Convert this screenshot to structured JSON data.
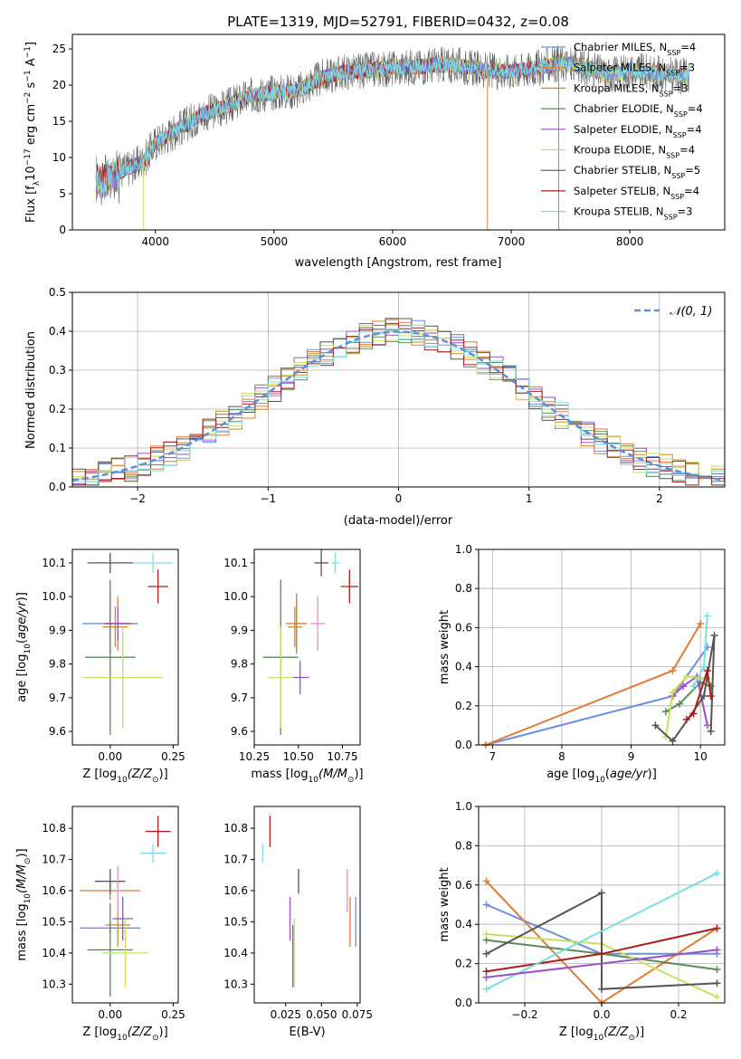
{
  "colors": {
    "chabrier_miles": "#6f8ee0",
    "salpeter_miles": "#e07b39",
    "kroupa_miles": "#c98a2a",
    "chabrier_elodie": "#5a8a5a",
    "salpeter_elodie": "#9a4fc7",
    "kroupa_elodie": "#cddc64",
    "chabrier_stelib": "#555555",
    "salpeter_stelib": "#a81e1e",
    "kroupa_stelib": "#7fdde0",
    "normal_curve": "#5b8fd6"
  },
  "chart_data": [
    {
      "type": "line",
      "title": "PLATE=1319, MJD=52791, FIBERID=0432, z=0.08",
      "xlabel": "wavelength [Angstrom, rest frame]",
      "ylabel_parts": [
        "Flux [f",
        "λ",
        "10",
        "−17",
        " erg cm",
        "−2",
        " s",
        "−1",
        " A",
        "−1",
        "]"
      ],
      "xlim": [
        3300,
        8800
      ],
      "ylim": [
        0,
        27
      ],
      "xticks": [
        "4000",
        "5000",
        "6000",
        "7000",
        "8000"
      ],
      "yticks": [
        "0",
        "5",
        "10",
        "15",
        "20",
        "25"
      ],
      "legend_position": "right",
      "series": [
        {
          "name_main": "Chabrier MILES, N",
          "name_sub": "SSP",
          "name_tail": "=4"
        },
        {
          "name_main": "Salpeter MILES, N",
          "name_sub": "SSP",
          "name_tail": "=3"
        },
        {
          "name_main": "Kroupa MILES, N",
          "name_sub": "SSP",
          "name_tail": "=3"
        },
        {
          "name_main": "Chabrier ELODIE, N",
          "name_sub": "SSP",
          "name_tail": "=4"
        },
        {
          "name_main": "Salpeter ELODIE, N",
          "name_sub": "SSP",
          "name_tail": "=4"
        },
        {
          "name_main": "Kroupa ELODIE, N",
          "name_sub": "SSP",
          "name_tail": "=4"
        },
        {
          "name_main": "Chabrier STELIB, N",
          "name_sub": "SSP",
          "name_tail": "=5"
        },
        {
          "name_main": "Salpeter STELIB, N",
          "name_sub": "SSP",
          "name_tail": "=4"
        },
        {
          "name_main": "Kroupa STELIB, N",
          "name_sub": "SSP",
          "name_tail": "=3"
        }
      ],
      "continuum": [
        [
          3500,
          6.5
        ],
        [
          3700,
          8.0
        ],
        [
          3900,
          9.5
        ],
        [
          4000,
          12.0
        ],
        [
          4200,
          14.0
        ],
        [
          4400,
          16.0
        ],
        [
          4600,
          17.0
        ],
        [
          4800,
          18.5
        ],
        [
          5000,
          19.0
        ],
        [
          5200,
          19.2
        ],
        [
          5400,
          21.0
        ],
        [
          5600,
          21.8
        ],
        [
          5800,
          22.0
        ],
        [
          6000,
          22.3
        ],
        [
          6200,
          22.5
        ],
        [
          6400,
          22.8
        ],
        [
          6600,
          22.6
        ],
        [
          6800,
          22.0
        ],
        [
          7000,
          21.9
        ],
        [
          7200,
          22.3
        ],
        [
          7400,
          23.0
        ],
        [
          7600,
          22.6
        ],
        [
          7800,
          21.4
        ],
        [
          8000,
          22.0
        ],
        [
          8200,
          21.7
        ],
        [
          8400,
          21.3
        ],
        [
          8500,
          21.2
        ]
      ]
    },
    {
      "type": "bar",
      "xlabel": "(data-model)/error",
      "ylabel": "Normed distribution",
      "xlim": [
        -2.5,
        2.5
      ],
      "ylim": [
        0,
        0.5
      ],
      "xticks": [
        "−2",
        "−1",
        "0",
        "1",
        "2"
      ],
      "yticks": [
        "0.0",
        "0.1",
        "0.2",
        "0.3",
        "0.4",
        "0.5"
      ],
      "grid": true,
      "legend_position": "top-right",
      "legend": "𝒩(0, 1)",
      "bin_width": 0.1
    },
    {
      "type": "scatter",
      "xlabel_parts": [
        "Z [log",
        "10",
        "(Z/Z",
        "⊙",
        ")]"
      ],
      "ylabel_parts": [
        "age  [log",
        "10",
        "(",
        "age/yr",
        ")]"
      ],
      "xlim": [
        -0.15,
        0.27
      ],
      "ylim": [
        9.56,
        10.14
      ],
      "xticks": [
        "0.00",
        "0.25"
      ],
      "yticks": [
        "9.6",
        "9.7",
        "9.8",
        "9.9",
        "10.0",
        "10.1"
      ],
      "points": [
        {
          "x": 0.0,
          "y": 9.92,
          "xerr": 0.11,
          "yerr": 0.09,
          "c": "chabrier_miles"
        },
        {
          "x": 0.03,
          "y": 9.92,
          "xerr": 0.06,
          "yerr": 0.08,
          "c": "salpeter_miles"
        },
        {
          "x": 0.02,
          "y": 9.91,
          "xerr": 0.05,
          "yerr": 0.06,
          "c": "kroupa_miles"
        },
        {
          "x": 0.0,
          "y": 9.82,
          "xerr": 0.1,
          "yerr": 0.23,
          "c": "chabrier_elodie"
        },
        {
          "x": 0.03,
          "y": 9.92,
          "xerr": 0.05,
          "yerr": 0.05,
          "c": "salpeter_elodie"
        },
        {
          "x": 0.05,
          "y": 9.76,
          "xerr": 0.16,
          "yerr": 0.15,
          "c": "kroupa_elodie"
        },
        {
          "x": 0.0,
          "y": 10.1,
          "xerr": 0.09,
          "yerr": 0.03,
          "c": "chabrier_stelib"
        },
        {
          "x": 0.19,
          "y": 10.03,
          "xerr": 0.04,
          "yerr": 0.05,
          "c": "salpeter_stelib"
        },
        {
          "x": 0.17,
          "y": 10.1,
          "xerr": 0.08,
          "yerr": 0.03,
          "c": "kroupa_stelib"
        }
      ]
    },
    {
      "type": "scatter",
      "xlabel_parts": [
        "mass [log",
        "10",
        "(M/M",
        "⊙",
        ")]"
      ],
      "xlim": [
        10.25,
        10.85
      ],
      "ylim": [
        9.56,
        10.14
      ],
      "xticks": [
        "10.25",
        "10.50",
        "10.75"
      ],
      "yticks": [
        "9.6",
        "9.7",
        "9.8",
        "9.9",
        "10.0",
        "10.1"
      ],
      "points": [
        {
          "x": 10.49,
          "y": 9.92,
          "xerr": 0.02,
          "yerr": 0.09,
          "c": "chabrier_miles"
        },
        {
          "x": 10.49,
          "y": 9.92,
          "xerr": 0.06,
          "yerr": 0.08,
          "c": "salpeter_miles"
        },
        {
          "x": 10.48,
          "y": 9.91,
          "xerr": 0.04,
          "yerr": 0.06,
          "c": "kroupa_miles"
        },
        {
          "x": 10.4,
          "y": 9.82,
          "xerr": 0.1,
          "yerr": 0.23,
          "c": "chabrier_elodie"
        },
        {
          "x": 10.51,
          "y": 9.76,
          "xerr": 0.05,
          "yerr": 0.05,
          "c": "salpeter_elodie"
        },
        {
          "x": 10.4,
          "y": 9.76,
          "xerr": 0.07,
          "yerr": 0.15,
          "c": "kroupa_elodie"
        },
        {
          "x": 10.63,
          "y": 10.1,
          "xerr": 0.04,
          "yerr": 0.04,
          "c": "chabrier_stelib"
        },
        {
          "x": 10.79,
          "y": 10.03,
          "xerr": 0.05,
          "yerr": 0.05,
          "c": "salpeter_stelib"
        },
        {
          "x": 10.71,
          "y": 10.1,
          "xerr": 0.02,
          "yerr": 0.03,
          "c": "kroupa_stelib"
        },
        {
          "x": 10.61,
          "y": 9.92,
          "xerr": 0.04,
          "yerr": 0.08,
          "c": "salpeter_elodie_alt"
        }
      ]
    },
    {
      "type": "line",
      "xlabel_parts": [
        "age  [log",
        "10",
        "(",
        "age/yr",
        ")]"
      ],
      "ylabel": "mass weight",
      "xlim": [
        6.8,
        10.35
      ],
      "ylim": [
        0,
        1
      ],
      "xticks": [
        "7",
        "8",
        "9",
        "10"
      ],
      "yticks": [
        "0.0",
        "0.2",
        "0.4",
        "0.6",
        "0.8",
        "1.0"
      ],
      "grid": true,
      "series": [
        {
          "c": "chabrier_miles",
          "x": [
            6.9,
            9.6,
            10.1
          ],
          "y": [
            0.0,
            0.25,
            0.5
          ]
        },
        {
          "c": "salpeter_miles",
          "x": [
            6.9,
            9.6,
            10.0
          ],
          "y": [
            0.0,
            0.38,
            0.62
          ]
        },
        {
          "c": "chabrier_elodie",
          "x": [
            9.5,
            9.7,
            10.0,
            10.15
          ],
          "y": [
            0.17,
            0.21,
            0.32,
            0.3
          ]
        },
        {
          "c": "salpeter_elodie",
          "x": [
            9.6,
            9.75,
            9.95,
            10.1
          ],
          "y": [
            0.25,
            0.3,
            0.35,
            0.1
          ]
        },
        {
          "c": "kroupa_elodie",
          "x": [
            9.5,
            9.6,
            9.8,
            10.1
          ],
          "y": [
            0.04,
            0.27,
            0.35,
            0.34
          ]
        },
        {
          "c": "chabrier_stelib",
          "x": [
            9.35,
            9.6,
            10.05,
            10.2,
            10.15
          ],
          "y": [
            0.1,
            0.02,
            0.25,
            0.56,
            0.07
          ]
        },
        {
          "c": "salpeter_stelib",
          "x": [
            9.8,
            9.9,
            10.1,
            10.15
          ],
          "y": [
            0.13,
            0.16,
            0.38,
            0.25
          ]
        },
        {
          "c": "kroupa_stelib",
          "x": [
            9.9,
            10.05,
            10.1
          ],
          "y": [
            0.3,
            0.4,
            0.66
          ]
        }
      ]
    },
    {
      "type": "scatter",
      "xlabel_parts": [
        "Z [log",
        "10",
        "(Z/Z",
        "⊙",
        ")]"
      ],
      "ylabel_parts": [
        "mass [log",
        "10",
        "(M/M",
        "⊙",
        ")]"
      ],
      "xlim": [
        -0.15,
        0.27
      ],
      "ylim": [
        10.24,
        10.87
      ],
      "xticks": [
        "0.00",
        "0.25"
      ],
      "yticks": [
        "10.3",
        "10.4",
        "10.5",
        "10.6",
        "10.7",
        "10.8"
      ],
      "points": [
        {
          "x": 0.0,
          "y": 10.48,
          "xerr": 0.12,
          "yerr": 0.02,
          "c": "chabrier_miles"
        },
        {
          "x": 0.0,
          "y": 10.6,
          "xerr": 0.12,
          "yerr": 0.03,
          "c": "salpeter_miles"
        },
        {
          "x": 0.03,
          "y": 10.49,
          "xerr": 0.05,
          "yerr": 0.07,
          "c": "kroupa_miles"
        },
        {
          "x": 0.0,
          "y": 10.41,
          "xerr": 0.09,
          "yerr": 0.15,
          "c": "chabrier_elodie"
        },
        {
          "x": 0.05,
          "y": 10.51,
          "xerr": 0.04,
          "yerr": 0.07,
          "c": "salpeter_elodie"
        },
        {
          "x": 0.06,
          "y": 10.4,
          "xerr": 0.09,
          "yerr": 0.11,
          "c": "kroupa_elodie"
        },
        {
          "x": 0.0,
          "y": 10.63,
          "xerr": 0.06,
          "yerr": 0.04,
          "c": "chabrier_stelib"
        },
        {
          "x": 0.19,
          "y": 10.79,
          "xerr": 0.05,
          "yerr": 0.05,
          "c": "salpeter_stelib"
        },
        {
          "x": 0.17,
          "y": 10.72,
          "xerr": 0.05,
          "yerr": 0.03,
          "c": "kroupa_stelib"
        },
        {
          "x": 0.03,
          "y": 10.6,
          "xerr": 0.01,
          "yerr": 0.08,
          "c": "salpeter_elodie_alt"
        }
      ]
    },
    {
      "type": "scatter",
      "xlabel": "E(B-V)",
      "xlim": [
        0.003,
        0.077
      ],
      "ylim": [
        10.24,
        10.87
      ],
      "xticks": [
        "0.025",
        "0.050",
        "0.075"
      ],
      "yticks": [
        "10.3",
        "10.4",
        "10.5",
        "10.6",
        "10.7",
        "10.8"
      ],
      "points": [
        {
          "x": 0.074,
          "y": 10.5,
          "yerr": 0.08,
          "c": "chabrier_miles"
        },
        {
          "x": 0.07,
          "y": 10.5,
          "yerr": 0.08,
          "c": "salpeter_miles"
        },
        {
          "x": 0.068,
          "y": 10.6,
          "yerr": 0.07,
          "c": "salpeter_elodie_alt"
        },
        {
          "x": 0.03,
          "y": 10.39,
          "yerr": 0.1,
          "c": "chabrier_elodie"
        },
        {
          "x": 0.028,
          "y": 10.51,
          "yerr": 0.07,
          "c": "salpeter_elodie"
        },
        {
          "x": 0.031,
          "y": 10.4,
          "yerr": 0.11,
          "c": "kroupa_elodie"
        },
        {
          "x": 0.034,
          "y": 10.63,
          "yerr": 0.04,
          "c": "chabrier_stelib"
        },
        {
          "x": 0.014,
          "y": 10.79,
          "yerr": 0.05,
          "c": "salpeter_stelib"
        },
        {
          "x": 0.009,
          "y": 10.72,
          "yerr": 0.03,
          "c": "kroupa_stelib"
        }
      ]
    },
    {
      "type": "line",
      "xlabel_parts": [
        "Z [log",
        "10",
        "(Z/Z",
        "⊙",
        ")]"
      ],
      "ylabel": "mass weight",
      "xlim": [
        -0.32,
        0.32
      ],
      "ylim": [
        0,
        1
      ],
      "xticks": [
        "−0.2",
        "0.0",
        "0.2"
      ],
      "yticks": [
        "0.0",
        "0.2",
        "0.4",
        "0.6",
        "0.8",
        "1.0"
      ],
      "grid": true,
      "series": [
        {
          "c": "chabrier_miles",
          "x": [
            -0.3,
            0.0,
            0.3
          ],
          "y": [
            0.5,
            0.25,
            0.25
          ]
        },
        {
          "c": "salpeter_miles",
          "x": [
            -0.3,
            0.0,
            0.3
          ],
          "y": [
            0.62,
            0.0,
            0.38
          ]
        },
        {
          "c": "chabrier_elodie",
          "x": [
            -0.3,
            0.0,
            0.3
          ],
          "y": [
            0.32,
            0.25,
            0.17
          ]
        },
        {
          "c": "kroupa_elodie",
          "x": [
            -0.3,
            0.0,
            0.3
          ],
          "y": [
            0.35,
            0.3,
            0.03
          ]
        },
        {
          "c": "chabrier_stelib",
          "x": [
            -0.3,
            0.0,
            0.0,
            0.3
          ],
          "y": [
            0.25,
            0.56,
            0.07,
            0.1
          ]
        },
        {
          "c": "salpeter_stelib",
          "x": [
            -0.3,
            0.0,
            0.3
          ],
          "y": [
            0.16,
            0.25,
            0.38
          ]
        },
        {
          "c": "kroupa_stelib",
          "x": [
            -0.3,
            0.3
          ],
          "y": [
            0.07,
            0.66
          ]
        },
        {
          "c": "salpeter_elodie",
          "x": [
            -0.3,
            0.3
          ],
          "y": [
            0.13,
            0.27
          ]
        }
      ]
    }
  ]
}
